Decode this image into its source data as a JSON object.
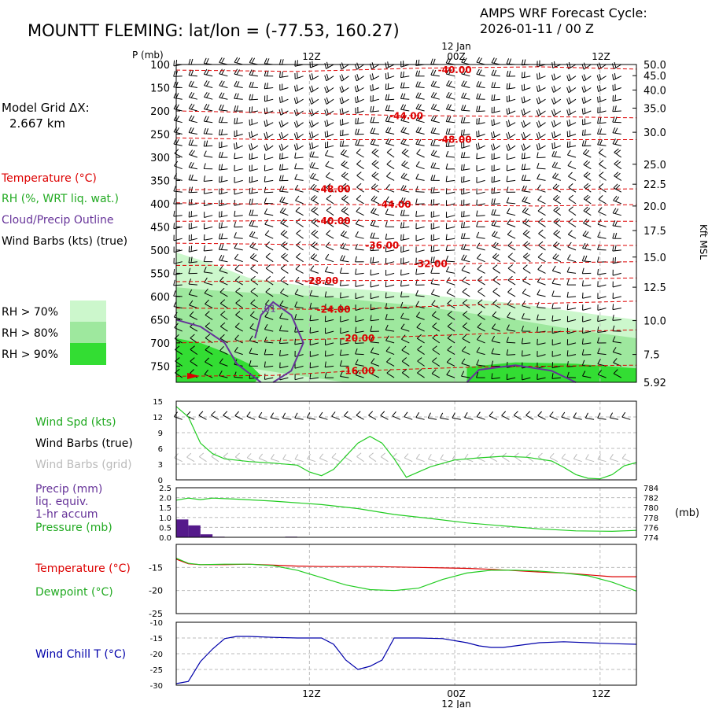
{
  "header": {
    "station_title": "MOUNTT FLEMING:  lat/lon = (-77.53, 160.27)",
    "cycle_line1": "AMPS WRF Forecast Cycle:",
    "cycle_line2": "2026-01-11 / 00  Z"
  },
  "model_grid": {
    "label": "Model Grid ΔX:",
    "value": "2.667 km"
  },
  "legend": {
    "temperature": "Temperature (°C)",
    "rh": "RH (%, WRT liq. wat.)",
    "cloud": "Cloud/Precip Outline",
    "wind": "Wind Barbs (kts) (true)",
    "rh_classes": [
      {
        "label": "RH > 70%",
        "color": "#ccf7cc"
      },
      {
        "label": "RH > 80%",
        "color": "#9ee89e"
      },
      {
        "label": "RH > 90%",
        "color": "#33dd33"
      }
    ]
  },
  "colors": {
    "temperature": "#dd0000",
    "rh_line": "#22cc22",
    "cloud": "#663399",
    "wind": "#000000",
    "wind_grid": "#bbbbbb",
    "precip": "#551a8b",
    "wind_chill": "#0000aa",
    "grid": "#bbbbbb"
  },
  "chart_data": [
    {
      "type": "heatmap",
      "name": "time-height cross section",
      "top_time_labels": [
        "12Z",
        "12 Jan",
        "00Z",
        "12Z"
      ],
      "bottom_time_labels": [
        "12Z",
        "00Z",
        "12 Jan",
        "12Z"
      ],
      "time_axis": {
        "start_hour": 0,
        "end_hour": 38,
        "ticks_hours": [
          11,
          23,
          35
        ]
      },
      "pressure_axis_label": "P (mb)",
      "pressure_ticks": [
        100,
        150,
        200,
        250,
        300,
        350,
        400,
        450,
        500,
        550,
        600,
        650,
        700,
        750
      ],
      "plim": [
        100,
        785
      ],
      "height_axis_label": "Kft MSL",
      "height_ticks": [
        {
          "p": 100,
          "label": "50.0"
        },
        {
          "p": 124,
          "label": "45.0"
        },
        {
          "p": 155,
          "label": "40.0"
        },
        {
          "p": 194,
          "label": "35.0"
        },
        {
          "p": 246,
          "label": "30.0"
        },
        {
          "p": 315,
          "label": "25.0"
        },
        {
          "p": 358,
          "label": "22.5"
        },
        {
          "p": 405,
          "label": "20.0"
        },
        {
          "p": 458,
          "label": "17.5"
        },
        {
          "p": 515,
          "label": "15.0"
        },
        {
          "p": 580,
          "label": "12.5"
        },
        {
          "p": 652,
          "label": "10.0"
        },
        {
          "p": 725,
          "label": "7.5"
        },
        {
          "p": 785,
          "label": "5.92"
        }
      ],
      "isotherms": [
        {
          "label": "-40.00",
          "label_hour": 23,
          "points": [
            [
              0,
              112
            ],
            [
              10,
              115
            ],
            [
              20,
              108
            ],
            [
              30,
              105
            ],
            [
              38,
              110
            ]
          ],
          "label_p": 112
        },
        {
          "label": "-44.00",
          "label_hour": 19,
          "points": [
            [
              0,
              200
            ],
            [
              10,
              205
            ],
            [
              19,
              210
            ],
            [
              30,
              212
            ],
            [
              38,
              215
            ]
          ],
          "label_p": 211
        },
        {
          "label": "-48.00",
          "label_hour": 23,
          "points": [
            [
              0,
              258
            ],
            [
              8,
              262
            ],
            [
              23,
              262
            ],
            [
              38,
              262
            ]
          ],
          "label_p": 262
        },
        {
          "label": "-48.00",
          "label_hour": 13,
          "points": [
            [
              0,
              370
            ],
            [
              13,
              368
            ],
            [
              25,
              370
            ],
            [
              38,
              368
            ]
          ],
          "label_p": 369
        },
        {
          "label": "-44.00",
          "label_hour": 18,
          "points": [
            [
              0,
              398
            ],
            [
              10,
              402
            ],
            [
              18,
              402
            ],
            [
              30,
              405
            ],
            [
              38,
              402
            ]
          ],
          "label_p": 402
        },
        {
          "label": "-40.00",
          "label_hour": 13,
          "points": [
            [
              0,
              438
            ],
            [
              13,
              436
            ],
            [
              25,
              438
            ],
            [
              38,
              438
            ]
          ],
          "label_p": 437
        },
        {
          "label": "-36.00",
          "label_hour": 17,
          "points": [
            [
              0,
              485
            ],
            [
              10,
              488
            ],
            [
              17,
              490
            ],
            [
              38,
              490
            ]
          ],
          "label_p": 490
        },
        {
          "label": "-32.00",
          "label_hour": 21,
          "points": [
            [
              0,
              533
            ],
            [
              10,
              532
            ],
            [
              21,
              530
            ],
            [
              38,
              525
            ]
          ],
          "label_p": 530
        },
        {
          "label": "-28.00",
          "label_hour": 12,
          "points": [
            [
              0,
              568
            ],
            [
              12,
              566
            ],
            [
              25,
              565
            ],
            [
              38,
              560
            ]
          ],
          "label_p": 566
        },
        {
          "label": "-24.00",
          "label_hour": 13,
          "points": [
            [
              0,
              625
            ],
            [
              13,
              628
            ],
            [
              25,
              618
            ],
            [
              38,
              610
            ]
          ],
          "label_p": 628
        },
        {
          "label": "-20.00",
          "label_hour": 15,
          "points": [
            [
              0,
              700
            ],
            [
              15,
              690
            ],
            [
              28,
              678
            ],
            [
              38,
              672
            ]
          ],
          "label_p": 690
        },
        {
          "label": "-16.00",
          "label_hour": 15,
          "points": [
            [
              0,
              772
            ],
            [
              8,
              770
            ],
            [
              15,
              760
            ],
            [
              25,
              752
            ],
            [
              38,
              748
            ]
          ],
          "label_p": 760
        }
      ],
      "rh_regions": [
        {
          "class": ">70%",
          "points": [
            [
              0,
              505
            ],
            [
              3,
              530
            ],
            [
              6,
              560
            ],
            [
              10,
              575
            ],
            [
              18,
              590
            ],
            [
              28,
              615
            ],
            [
              35,
              640
            ],
            [
              38,
              650
            ],
            [
              38,
              785
            ],
            [
              0,
              785
            ]
          ]
        },
        {
          "class": ">80%",
          "points": [
            [
              0,
              580
            ],
            [
              2,
              585
            ],
            [
              5,
              590
            ],
            [
              12,
              600
            ],
            [
              20,
              620
            ],
            [
              28,
              650
            ],
            [
              33,
              672
            ],
            [
              38,
              690
            ],
            [
              38,
              785
            ],
            [
              14,
              785
            ],
            [
              10,
              770
            ],
            [
              5,
              750
            ],
            [
              0,
              700
            ]
          ]
        },
        {
          "class": ">90%",
          "points": [
            [
              0,
              690
            ],
            [
              2,
              700
            ],
            [
              4,
              720
            ],
            [
              6,
              745
            ],
            [
              7,
              770
            ],
            [
              6.5,
              785
            ],
            [
              0,
              785
            ]
          ]
        },
        {
          "class": ">90%",
          "points": [
            [
              24,
              752
            ],
            [
              28,
              742
            ],
            [
              33,
              745
            ],
            [
              38,
              755
            ],
            [
              38,
              785
            ],
            [
              24,
              785
            ]
          ]
        }
      ],
      "cloud_outlines": [
        {
          "points": [
            [
              0,
              650
            ],
            [
              2,
              665
            ],
            [
              4,
              700
            ],
            [
              5,
              745
            ],
            [
              6.5,
              775
            ],
            [
              7,
              785
            ]
          ]
        },
        {
          "points": [
            [
              8,
              785
            ],
            [
              9.5,
              760
            ],
            [
              10.5,
              700
            ],
            [
              9.5,
              640
            ],
            [
              8,
              612
            ],
            [
              7,
              640
            ],
            [
              6.5,
              690
            ]
          ]
        },
        {
          "points": [
            [
              24,
              785
            ],
            [
              25,
              758
            ],
            [
              28,
              748
            ],
            [
              31,
              760
            ],
            [
              33,
              785
            ]
          ]
        }
      ],
      "cloud_labels": [
        {
          "label": ".01",
          "hour": 7,
          "p": 633
        }
      ],
      "wind_barbs_rows_mb": [
        100,
        125,
        150,
        175,
        200,
        225,
        250,
        275,
        300,
        325,
        350,
        375,
        400,
        425,
        450,
        475,
        500,
        525,
        550,
        575,
        600,
        625,
        650,
        675,
        700,
        725,
        750,
        775
      ]
    },
    {
      "type": "line",
      "name": "wind speed",
      "ylim": [
        0,
        15
      ],
      "yticks": [
        "15",
        "12",
        "9",
        "6",
        "3",
        "0"
      ],
      "labels": [
        "Wind Spd (kts)",
        "Wind Barbs (true)",
        "Wind Barbs (grid)"
      ],
      "x_hours": [
        0,
        1,
        2,
        3,
        4,
        6,
        8,
        10,
        11,
        12,
        13,
        15,
        16,
        17,
        18,
        19,
        21,
        23,
        25,
        27,
        29,
        31,
        32,
        33,
        34,
        35,
        36,
        37,
        38
      ],
      "wind_speed": [
        14,
        12,
        7,
        5,
        4,
        3.5,
        3.2,
        2.8,
        1.5,
        0.8,
        2.0,
        7.0,
        8.3,
        7.0,
        4.0,
        0.5,
        2.5,
        3.8,
        4.2,
        4.5,
        4.3,
        3.6,
        2.4,
        1.0,
        0.3,
        0.2,
        1.0,
        2.7,
        3.3
      ],
      "barbs_true_y": 11.5,
      "barbs_grid_y": 3.5
    },
    {
      "type": "line",
      "name": "precip and pressure",
      "left_ylim": [
        0,
        2.5
      ],
      "left_yticks": [
        "2.5",
        "2.0",
        "1.5",
        "1.0",
        "0.5",
        "0.0"
      ],
      "right_ylim": [
        774,
        784
      ],
      "right_yticks": [
        "784",
        "782",
        "780",
        "778",
        "776",
        "774"
      ],
      "right_unit": "(mb)",
      "labels": [
        "Precip (mm)",
        "liq. equiv.",
        "1-hr accum",
        "Pressure (mb)"
      ],
      "precip_bars": [
        {
          "hour": 0,
          "value": 0.9
        },
        {
          "hour": 1,
          "value": 0.6
        },
        {
          "hour": 2,
          "value": 0.15
        },
        {
          "hour": 3,
          "value": 0.03
        },
        {
          "hour": 9,
          "value": 0.03
        },
        {
          "hour": 26,
          "value": 0.02
        }
      ],
      "pressure_x": [
        0,
        1,
        2,
        3,
        5,
        8,
        12,
        15,
        18,
        21,
        24,
        27,
        30,
        33,
        36,
        38
      ],
      "pressure": [
        781.5,
        781.9,
        781.6,
        781.9,
        781.7,
        781.3,
        780.6,
        779.8,
        778.6,
        777.8,
        776.9,
        776.3,
        775.7,
        775.3,
        775.2,
        775.4
      ]
    },
    {
      "type": "line",
      "name": "temperature and dewpoint",
      "ylim": [
        -25,
        -10
      ],
      "yticks": [
        "-15",
        "-20",
        "-25"
      ],
      "labels": [
        "Temperature (°C)",
        "Dewpoint (°C)"
      ],
      "x_hours": [
        0,
        1,
        2,
        4,
        6,
        8,
        10,
        12,
        14,
        16,
        18,
        20,
        22,
        24,
        26,
        28,
        30,
        32,
        34,
        36,
        38
      ],
      "temperature": [
        -13.2,
        -14.2,
        -14.4,
        -14.4,
        -14.3,
        -14.5,
        -14.7,
        -14.8,
        -14.8,
        -14.8,
        -14.9,
        -15.0,
        -15.1,
        -15.2,
        -15.4,
        -15.7,
        -16.0,
        -16.2,
        -16.6,
        -17.0,
        -17.0
      ],
      "dewpoint": [
        -13.0,
        -14.1,
        -14.4,
        -14.3,
        -14.3,
        -14.6,
        -15.6,
        -17.2,
        -18.8,
        -19.8,
        -20.0,
        -19.5,
        -17.6,
        -16.2,
        -15.6,
        -15.6,
        -15.8,
        -16.2,
        -16.8,
        -18.2,
        -20.1
      ]
    },
    {
      "type": "line",
      "name": "wind chill",
      "ylim": [
        -30,
        -10
      ],
      "yticks": [
        "-10",
        "-15",
        "-20",
        "-25",
        "-30"
      ],
      "labels": [
        "Wind Chill T (°C)"
      ],
      "x_hours": [
        0,
        1,
        2,
        3,
        4,
        5,
        6,
        8,
        10,
        11,
        12,
        13,
        14,
        15,
        16,
        17,
        18,
        20,
        22,
        24,
        25,
        26,
        27,
        28,
        30,
        32,
        34,
        36,
        38
      ],
      "wind_chill": [
        -29.5,
        -28.8,
        -22.5,
        -18.5,
        -15.2,
        -14.5,
        -14.5,
        -14.8,
        -15.0,
        -15.0,
        -15.0,
        -17.0,
        -22.0,
        -25.0,
        -24.0,
        -22.0,
        -15.0,
        -15.0,
        -15.2,
        -16.5,
        -17.5,
        -18.0,
        -18.0,
        -17.5,
        -16.5,
        -16.2,
        -16.5,
        -16.8,
        -17.0
      ]
    }
  ]
}
